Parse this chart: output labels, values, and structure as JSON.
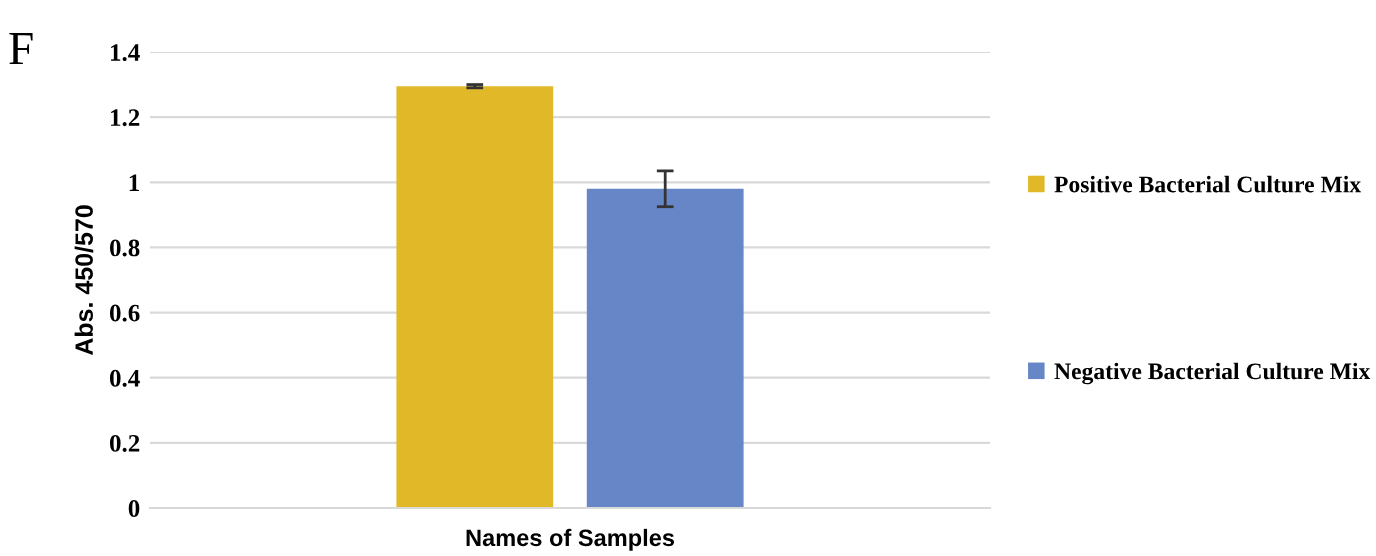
{
  "chart_data": {
    "type": "bar",
    "xlabel": "Names of Samples",
    "ylabel": "Abs. 450/570",
    "annotations": [
      "F"
    ],
    "categories": [
      null
    ],
    "series": [
      {
        "name": "Positive Bacterial Culture Mix",
        "color": "#e0b828",
        "values": [
          1.295
        ],
        "errors": [
          0.005
        ]
      },
      {
        "name": "Negative Bacterial Culture Mix",
        "color": "#6686c8",
        "values": [
          0.98
        ],
        "errors": [
          0.055
        ]
      }
    ],
    "ylim": [
      0,
      1.4
    ],
    "yticks": [
      0,
      0.2,
      0.4,
      0.6,
      0.8,
      1,
      1.2,
      1.4
    ],
    "grid": "y",
    "legend": "right"
  }
}
